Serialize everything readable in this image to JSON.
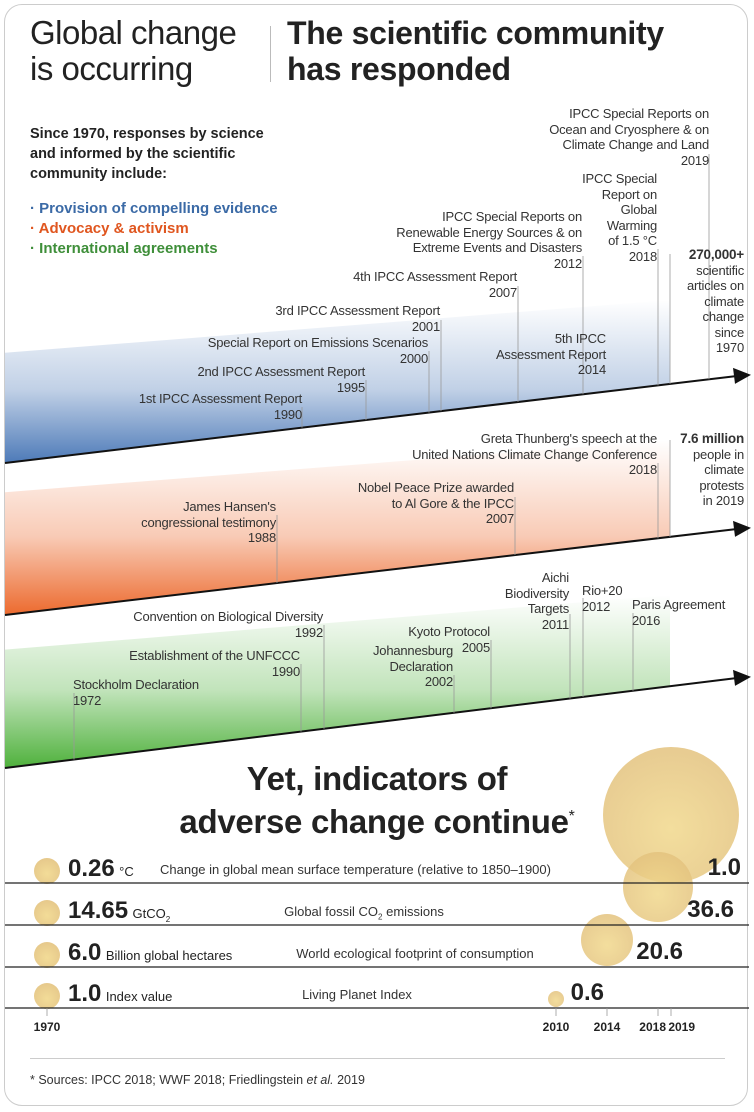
{
  "header": {
    "left_title": [
      "Global change",
      "is occurring"
    ],
    "right_title": [
      "The scientific community",
      "has responded"
    ]
  },
  "intro": {
    "lines": [
      "Since 1970, responses by science",
      "and informed by the scientific",
      "community include:"
    ],
    "bullets": [
      {
        "label": "· Provision of compelling evidence",
        "color": "#3b6aa6"
      },
      {
        "label": "· Advocacy & activism",
        "color": "#e0561f"
      },
      {
        "label": "· International agreements",
        "color": "#3f8f3a"
      }
    ]
  },
  "colors": {
    "science": "#4d7ab8",
    "advocacy": "#ec6a2e",
    "agreements": "#4fb13c",
    "circle": "#f1d88c"
  },
  "science_events": [
    {
      "lines": [
        "1st IPCC Assessment Report",
        "1990"
      ]
    },
    {
      "lines": [
        "2nd IPCC Assessment Report",
        "1995"
      ]
    },
    {
      "lines": [
        "Special Report on Emissions Scenarios",
        "2000"
      ]
    },
    {
      "lines": [
        "3rd IPCC Assessment Report",
        "2001"
      ]
    },
    {
      "lines": [
        "4th IPCC Assessment Report",
        "2007"
      ]
    },
    {
      "lines": [
        "IPCC Special Reports on",
        "Renewable Energy Sources & on",
        "Extreme Events and Disasters",
        "2012"
      ]
    },
    {
      "lines": [
        "5th IPCC",
        "Assessment Report",
        "2014"
      ]
    },
    {
      "lines": [
        "IPCC Special",
        "Report on",
        "Global",
        "Warming",
        "of 1.5 °C",
        "2018"
      ]
    },
    {
      "lines": [
        "IPCC Special Reports on",
        "Ocean and Cryosphere & on",
        "Climate Change and Land",
        "2019"
      ]
    }
  ],
  "science_total": {
    "value": "270,000+",
    "lines": [
      "scientific",
      "articles on",
      "climate",
      "change",
      "since",
      "1970"
    ]
  },
  "advocacy_events": [
    {
      "lines": [
        "James Hansen's",
        "congressional testimony",
        "1988"
      ]
    },
    {
      "lines": [
        "Nobel Peace Prize awarded",
        "to Al Gore & the IPCC",
        "2007"
      ]
    },
    {
      "lines": [
        "Greta Thunberg's speech at the",
        "United Nations Climate Change Conference",
        "2018"
      ]
    }
  ],
  "advocacy_total": {
    "value": "7.6 million",
    "lines": [
      "people in",
      "climate",
      "protests",
      "in 2019"
    ]
  },
  "agreement_events": [
    {
      "lines": [
        "Stockholm Declaration",
        "1972"
      ]
    },
    {
      "lines": [
        "Establishment of the UNFCCC",
        "1990"
      ]
    },
    {
      "lines": [
        "Convention on Biological Diversity",
        "1992"
      ]
    },
    {
      "lines": [
        "Johannesburg",
        "Declaration",
        "2002"
      ]
    },
    {
      "lines": [
        "Kyoto Protocol",
        "2005"
      ]
    },
    {
      "lines": [
        "Aichi",
        "Biodiversity",
        "Targets",
        "2011"
      ]
    },
    {
      "lines": [
        "Rio+20",
        "2012"
      ]
    },
    {
      "lines": [
        "Paris Agreement",
        "2016"
      ]
    }
  ],
  "indicators": {
    "title": [
      "Yet, indicators of",
      "adverse change continue"
    ],
    "asterisk": "*",
    "rows": [
      {
        "start": "0.26",
        "unit": "°C",
        "desc": "Change in global mean surface temperature (relative to 1850–1900)",
        "end": "1.0",
        "end_year": 2019
      },
      {
        "start": "14.65",
        "unit": "GtCO",
        "unit_sub": "2",
        "desc": "Global fossil CO",
        "desc_sub": "2",
        "desc_after": " emissions",
        "end": "36.6",
        "end_year": 2018
      },
      {
        "start": "6.0",
        "unit": "Billion global hectares",
        "desc": "World ecological footprint of consumption",
        "end": "20.6",
        "end_year": 2014
      },
      {
        "start": "1.0",
        "unit": "Index value",
        "desc": "Living Planet Index",
        "end": "0.6",
        "end_year": 2010
      }
    ],
    "years": [
      "1970",
      "2010",
      "2014",
      "2018",
      "2019"
    ]
  },
  "footnote": {
    "prefix": "* Sources: IPCC  2018; WWF 2018; Friedlingstein ",
    "italic": "et al.",
    "suffix": " 2019"
  }
}
